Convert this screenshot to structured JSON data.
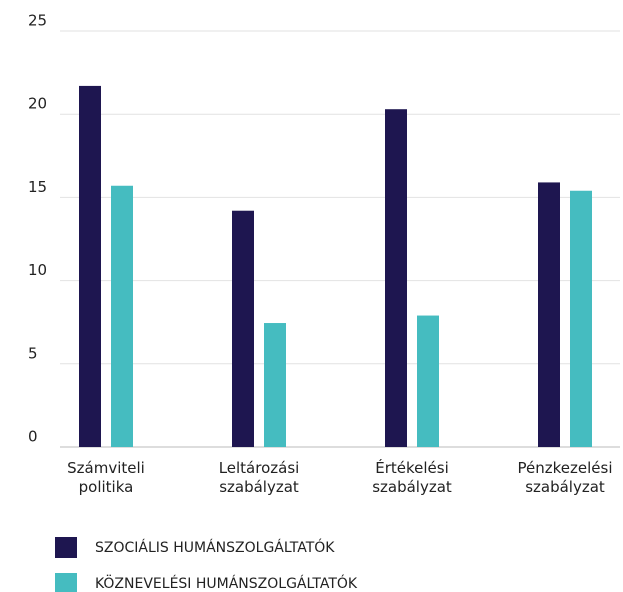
{
  "chart_data": {
    "type": "bar",
    "categories": [
      "Számviteli politika",
      "Leltározási szabályzat",
      "Értékelési szabályzat",
      "Pénzkezelési szabályzat"
    ],
    "series": [
      {
        "name": "SZOCIÁLIS HUMÁNSZOLGÁLTATÓK",
        "color": "#1e1650",
        "values": [
          21.7,
          14.2,
          20.3,
          15.9
        ]
      },
      {
        "name": "KÖZNEVELÉSI HUMÁNSZOLGÁLTATÓK",
        "color": "#45bcc0",
        "values": [
          15.7,
          7.45,
          7.9,
          15.4
        ]
      }
    ],
    "ylim": [
      0,
      25
    ],
    "yticks": [
      0,
      5,
      10,
      15,
      20,
      25
    ],
    "grid": true,
    "legend": "bottom"
  }
}
